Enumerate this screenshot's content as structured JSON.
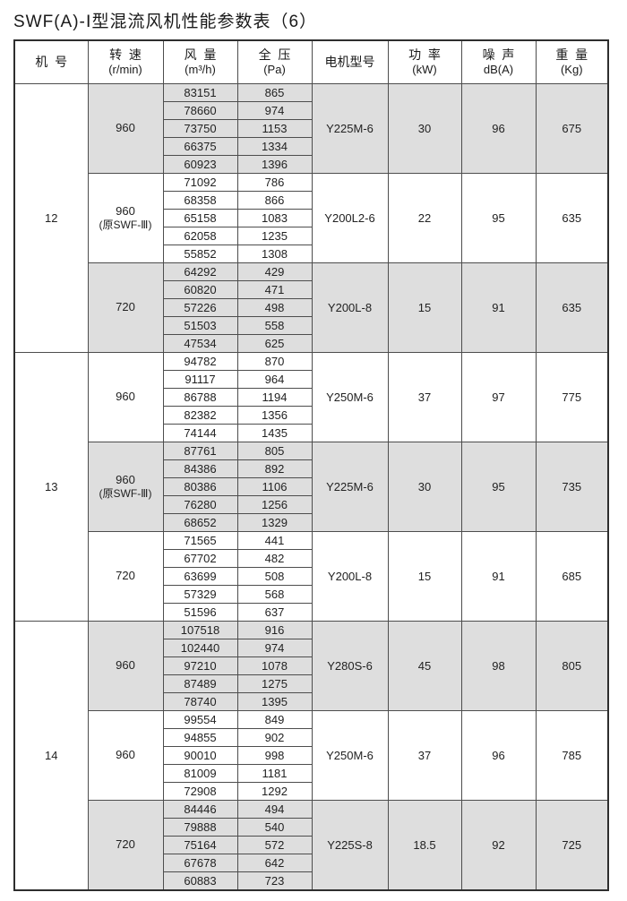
{
  "page": {
    "title": "SWF(A)-Ⅰ型混流风机性能参数表（6）"
  },
  "theme": {
    "shade_color": "#dedede",
    "grid_color": "#4d4d4d",
    "background": "#ffffff"
  },
  "table": {
    "headers": [
      {
        "label": "机  号",
        "unit": ""
      },
      {
        "label": "转  速",
        "unit": "(r/min)"
      },
      {
        "label": "风  量",
        "unit": "(m³/h)"
      },
      {
        "label": "全  压",
        "unit": "(Pa)"
      },
      {
        "label": "电机型号",
        "unit": ""
      },
      {
        "label": "功  率",
        "unit": "(kW)"
      },
      {
        "label": "噪  声",
        "unit": "dB(A)"
      },
      {
        "label": "重  量",
        "unit": "(Kg)"
      }
    ],
    "machines": [
      {
        "machine_no": "12",
        "groups": [
          {
            "speed": "960",
            "speed_note": "",
            "shaded": true,
            "rows": [
              [
                "83151",
                "865"
              ],
              [
                "78660",
                "974"
              ],
              [
                "73750",
                "1153"
              ],
              [
                "66375",
                "1334"
              ],
              [
                "60923",
                "1396"
              ]
            ],
            "motor": "Y225M-6",
            "power_kw": "30",
            "noise_db": "96",
            "weight_kg": "675"
          },
          {
            "speed": "960",
            "speed_note": "(原SWF-Ⅲ)",
            "shaded": false,
            "rows": [
              [
                "71092",
                "786"
              ],
              [
                "68358",
                "866"
              ],
              [
                "65158",
                "1083"
              ],
              [
                "62058",
                "1235"
              ],
              [
                "55852",
                "1308"
              ]
            ],
            "motor": "Y200L2-6",
            "power_kw": "22",
            "noise_db": "95",
            "weight_kg": "635"
          },
          {
            "speed": "720",
            "speed_note": "",
            "shaded": true,
            "rows": [
              [
                "64292",
                "429"
              ],
              [
                "60820",
                "471"
              ],
              [
                "57226",
                "498"
              ],
              [
                "51503",
                "558"
              ],
              [
                "47534",
                "625"
              ]
            ],
            "motor": "Y200L-8",
            "power_kw": "15",
            "noise_db": "91",
            "weight_kg": "635"
          }
        ]
      },
      {
        "machine_no": "13",
        "groups": [
          {
            "speed": "960",
            "speed_note": "",
            "shaded": false,
            "rows": [
              [
                "94782",
                "870"
              ],
              [
                "91117",
                "964"
              ],
              [
                "86788",
                "1194"
              ],
              [
                "82382",
                "1356"
              ],
              [
                "74144",
                "1435"
              ]
            ],
            "motor": "Y250M-6",
            "power_kw": "37",
            "noise_db": "97",
            "weight_kg": "775"
          },
          {
            "speed": "960",
            "speed_note": "(原SWF-Ⅲ)",
            "shaded": true,
            "rows": [
              [
                "87761",
                "805"
              ],
              [
                "84386",
                "892"
              ],
              [
                "80386",
                "1106"
              ],
              [
                "76280",
                "1256"
              ],
              [
                "68652",
                "1329"
              ]
            ],
            "motor": "Y225M-6",
            "power_kw": "30",
            "noise_db": "95",
            "weight_kg": "735"
          },
          {
            "speed": "720",
            "speed_note": "",
            "shaded": false,
            "rows": [
              [
                "71565",
                "441"
              ],
              [
                "67702",
                "482"
              ],
              [
                "63699",
                "508"
              ],
              [
                "57329",
                "568"
              ],
              [
                "51596",
                "637"
              ]
            ],
            "motor": "Y200L-8",
            "power_kw": "15",
            "noise_db": "91",
            "weight_kg": "685"
          }
        ]
      },
      {
        "machine_no": "14",
        "groups": [
          {
            "speed": "960",
            "speed_note": "",
            "shaded": true,
            "rows": [
              [
                "107518",
                "916"
              ],
              [
                "102440",
                "974"
              ],
              [
                "97210",
                "1078"
              ],
              [
                "87489",
                "1275"
              ],
              [
                "78740",
                "1395"
              ]
            ],
            "motor": "Y280S-6",
            "power_kw": "45",
            "noise_db": "98",
            "weight_kg": "805"
          },
          {
            "speed": "960",
            "speed_note": "",
            "shaded": false,
            "rows": [
              [
                "99554",
                "849"
              ],
              [
                "94855",
                "902"
              ],
              [
                "90010",
                "998"
              ],
              [
                "81009",
                "1181"
              ],
              [
                "72908",
                "1292"
              ]
            ],
            "motor": "Y250M-6",
            "power_kw": "37",
            "noise_db": "96",
            "weight_kg": "785"
          },
          {
            "speed": "720",
            "speed_note": "",
            "shaded": true,
            "rows": [
              [
                "84446",
                "494"
              ],
              [
                "79888",
                "540"
              ],
              [
                "75164",
                "572"
              ],
              [
                "67678",
                "642"
              ],
              [
                "60883",
                "723"
              ]
            ],
            "motor": "Y225S-8",
            "power_kw": "18.5",
            "noise_db": "92",
            "weight_kg": "725"
          }
        ]
      }
    ]
  }
}
